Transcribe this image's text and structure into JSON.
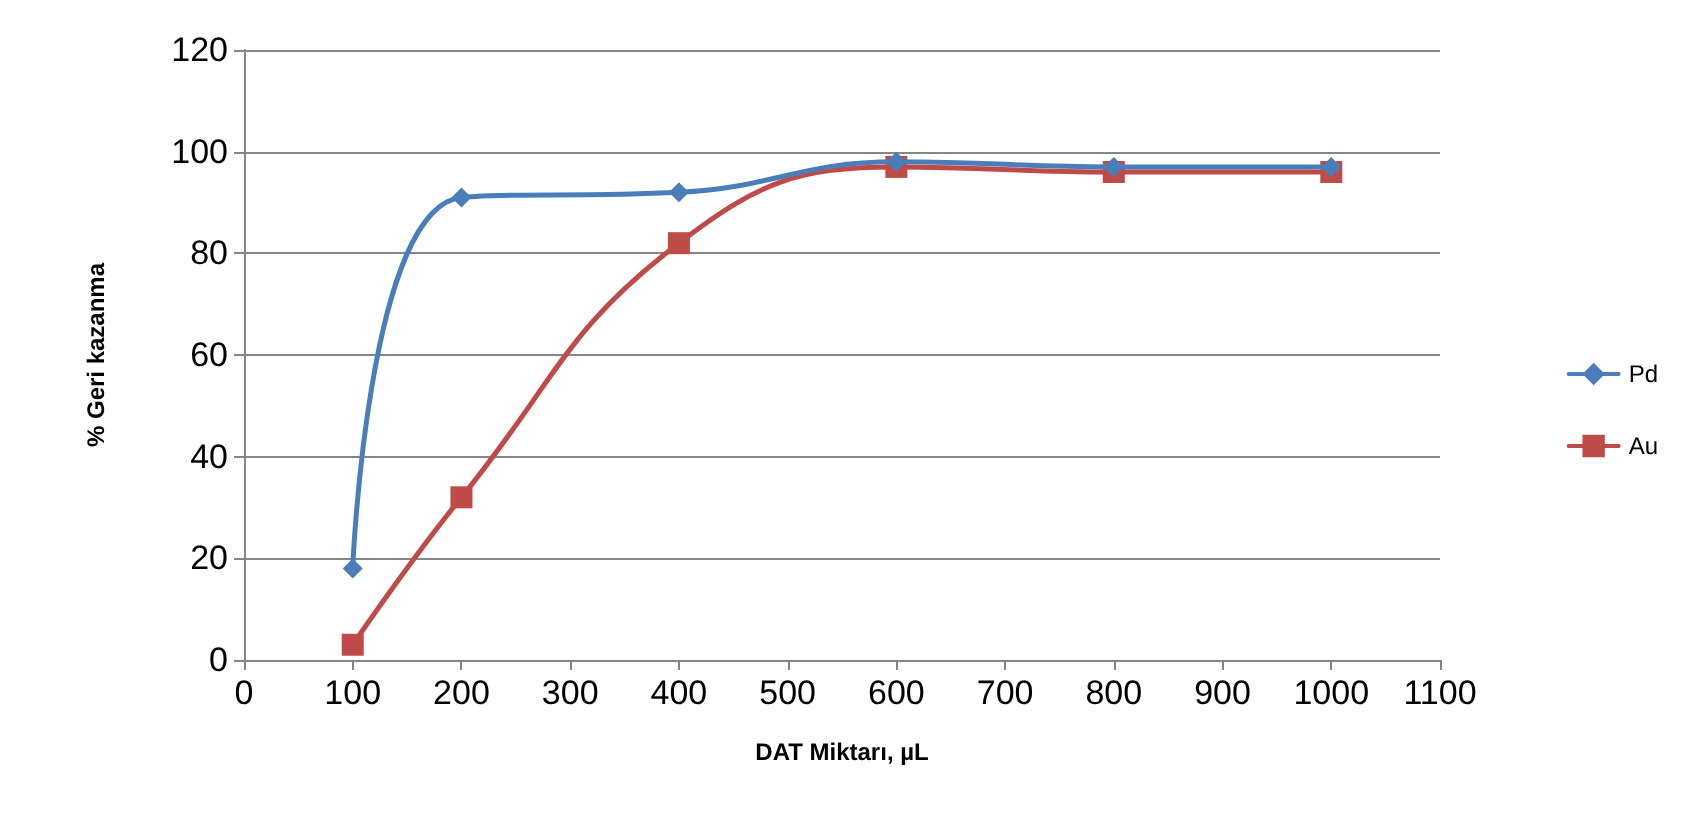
{
  "chart_data": {
    "type": "line",
    "xlabel": "DAT Miktarı, µL",
    "ylabel": "% Geri kazanma",
    "x": [
      100,
      200,
      400,
      600,
      800,
      1000
    ],
    "series": [
      {
        "name": "Pd",
        "color": "#4a7ebb",
        "marker": "diamond",
        "values": [
          18,
          91,
          92,
          98,
          97,
          97
        ]
      },
      {
        "name": "Au",
        "color": "#be4b48",
        "marker": "square",
        "values": [
          3,
          32,
          82,
          97,
          96,
          96
        ]
      }
    ],
    "xlim": [
      0,
      1100
    ],
    "xticks": [
      0,
      100,
      200,
      300,
      400,
      500,
      600,
      700,
      800,
      900,
      1000,
      1100
    ],
    "ylim": [
      0,
      120
    ],
    "yticks": [
      0,
      20,
      40,
      60,
      80,
      100,
      120
    ],
    "grid": "y",
    "legend": "right",
    "line_style": "solid"
  }
}
